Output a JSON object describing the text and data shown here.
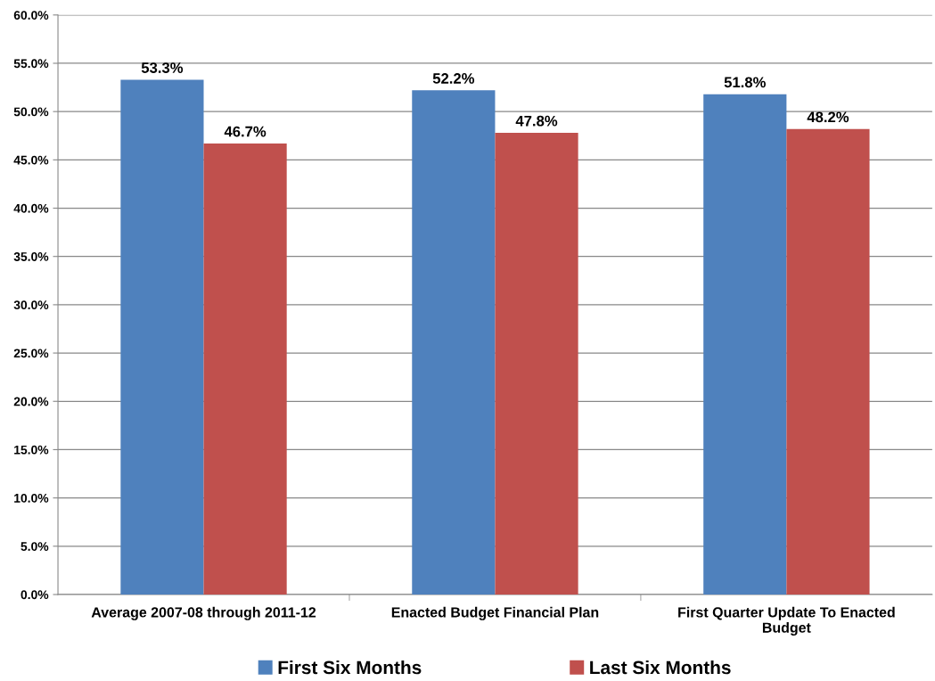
{
  "chart_data": {
    "type": "bar",
    "categories": [
      "Average 2007-08 through 2011-12",
      "Enacted Budget Financial Plan",
      "First Quarter Update To Enacted\nBudget"
    ],
    "series": [
      {
        "name": "First Six Months",
        "color": "#4f81bd",
        "values": [
          53.3,
          52.2,
          51.8
        ],
        "value_labels": [
          "53.3%",
          "52.2%",
          "51.8%"
        ]
      },
      {
        "name": "Last Six Months",
        "color": "#c0504d",
        "values": [
          46.7,
          47.8,
          48.2
        ],
        "value_labels": [
          "46.7%",
          "47.8%",
          "48.2%"
        ]
      }
    ],
    "ylim": [
      0,
      60
    ],
    "yticks": [
      {
        "value": 0,
        "label": "0.0%"
      },
      {
        "value": 5,
        "label": "5.0%"
      },
      {
        "value": 10,
        "label": "10.0%"
      },
      {
        "value": 15,
        "label": "15.0%"
      },
      {
        "value": 20,
        "label": "20.0%"
      },
      {
        "value": 25,
        "label": "25.0%"
      },
      {
        "value": 30,
        "label": "30.0%"
      },
      {
        "value": 35,
        "label": "35.0%"
      },
      {
        "value": 40,
        "label": "40.0%"
      },
      {
        "value": 45,
        "label": "45.0%"
      },
      {
        "value": 50,
        "label": "50.0%"
      },
      {
        "value": 55,
        "label": "55.0%"
      },
      {
        "value": 60,
        "label": "60.0%"
      }
    ],
    "grid": "y",
    "legend": "bottom"
  }
}
